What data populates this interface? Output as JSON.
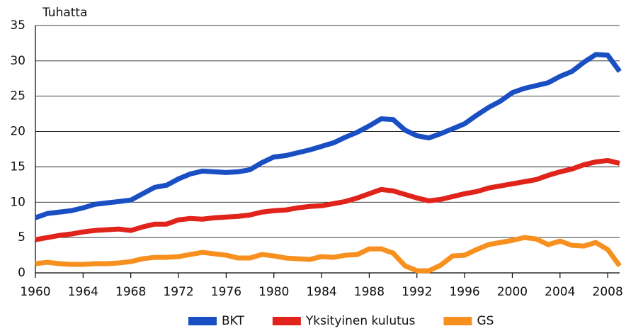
{
  "chart_data": {
    "type": "line",
    "title": "Tuhatta",
    "x": [
      1960,
      1961,
      1962,
      1963,
      1964,
      1965,
      1966,
      1967,
      1968,
      1969,
      1970,
      1971,
      1972,
      1973,
      1974,
      1975,
      1976,
      1977,
      1978,
      1979,
      1980,
      1981,
      1982,
      1983,
      1984,
      1985,
      1986,
      1987,
      1988,
      1989,
      1990,
      1991,
      1992,
      1993,
      1994,
      1995,
      1996,
      1997,
      1998,
      1999,
      2000,
      2001,
      2002,
      2003,
      2004,
      2005,
      2006,
      2007,
      2008,
      2009
    ],
    "series": [
      {
        "name": "BKT",
        "color": "#1a4fc4",
        "values": [
          7.8,
          8.4,
          8.6,
          8.8,
          9.2,
          9.7,
          9.9,
          10.1,
          10.3,
          11.2,
          12.1,
          12.4,
          13.3,
          14.0,
          14.4,
          14.3,
          14.2,
          14.3,
          14.6,
          15.6,
          16.4,
          16.6,
          17.0,
          17.4,
          17.9,
          18.4,
          19.2,
          19.9,
          20.8,
          21.8,
          21.7,
          20.2,
          19.4,
          19.1,
          19.7,
          20.4,
          21.1,
          22.3,
          23.4,
          24.3,
          25.5,
          26.1,
          26.5,
          26.9,
          27.8,
          28.5,
          29.8,
          30.9,
          30.8,
          28.5
        ]
      },
      {
        "name": "Yksityinen kulutus",
        "color": "#e0231b",
        "values": [
          4.7,
          5.0,
          5.3,
          5.5,
          5.8,
          6.0,
          6.1,
          6.2,
          6.0,
          6.5,
          6.9,
          6.9,
          7.5,
          7.7,
          7.6,
          7.8,
          7.9,
          8.0,
          8.2,
          8.6,
          8.8,
          8.9,
          9.2,
          9.4,
          9.5,
          9.8,
          10.1,
          10.6,
          11.2,
          11.8,
          11.6,
          11.1,
          10.6,
          10.2,
          10.4,
          10.8,
          11.2,
          11.5,
          12.0,
          12.3,
          12.6,
          12.9,
          13.2,
          13.8,
          14.3,
          14.7,
          15.3,
          15.7,
          15.9,
          15.5
        ]
      },
      {
        "name": "GS",
        "color": "#f7901e",
        "values": [
          1.3,
          1.5,
          1.3,
          1.2,
          1.2,
          1.3,
          1.3,
          1.4,
          1.6,
          2.0,
          2.2,
          2.2,
          2.3,
          2.6,
          2.9,
          2.7,
          2.5,
          2.1,
          2.1,
          2.6,
          2.4,
          2.1,
          2.0,
          1.9,
          2.3,
          2.2,
          2.5,
          2.6,
          3.4,
          3.4,
          2.8,
          1.0,
          0.3,
          0.3,
          1.1,
          2.4,
          2.5,
          3.3,
          4.0,
          4.3,
          4.6,
          5.0,
          4.8,
          4.0,
          4.5,
          3.9,
          3.8,
          4.3,
          3.3,
          1.0
        ]
      }
    ],
    "xlim": [
      1960,
      2009
    ],
    "xticks": [
      1960,
      1964,
      1968,
      1972,
      1976,
      1980,
      1984,
      1988,
      1992,
      1996,
      2000,
      2004,
      2008
    ],
    "ylim": [
      0,
      35
    ],
    "yticks": [
      0,
      5,
      10,
      15,
      20,
      25,
      30,
      35
    ],
    "grid": true,
    "legend": "bottom"
  }
}
